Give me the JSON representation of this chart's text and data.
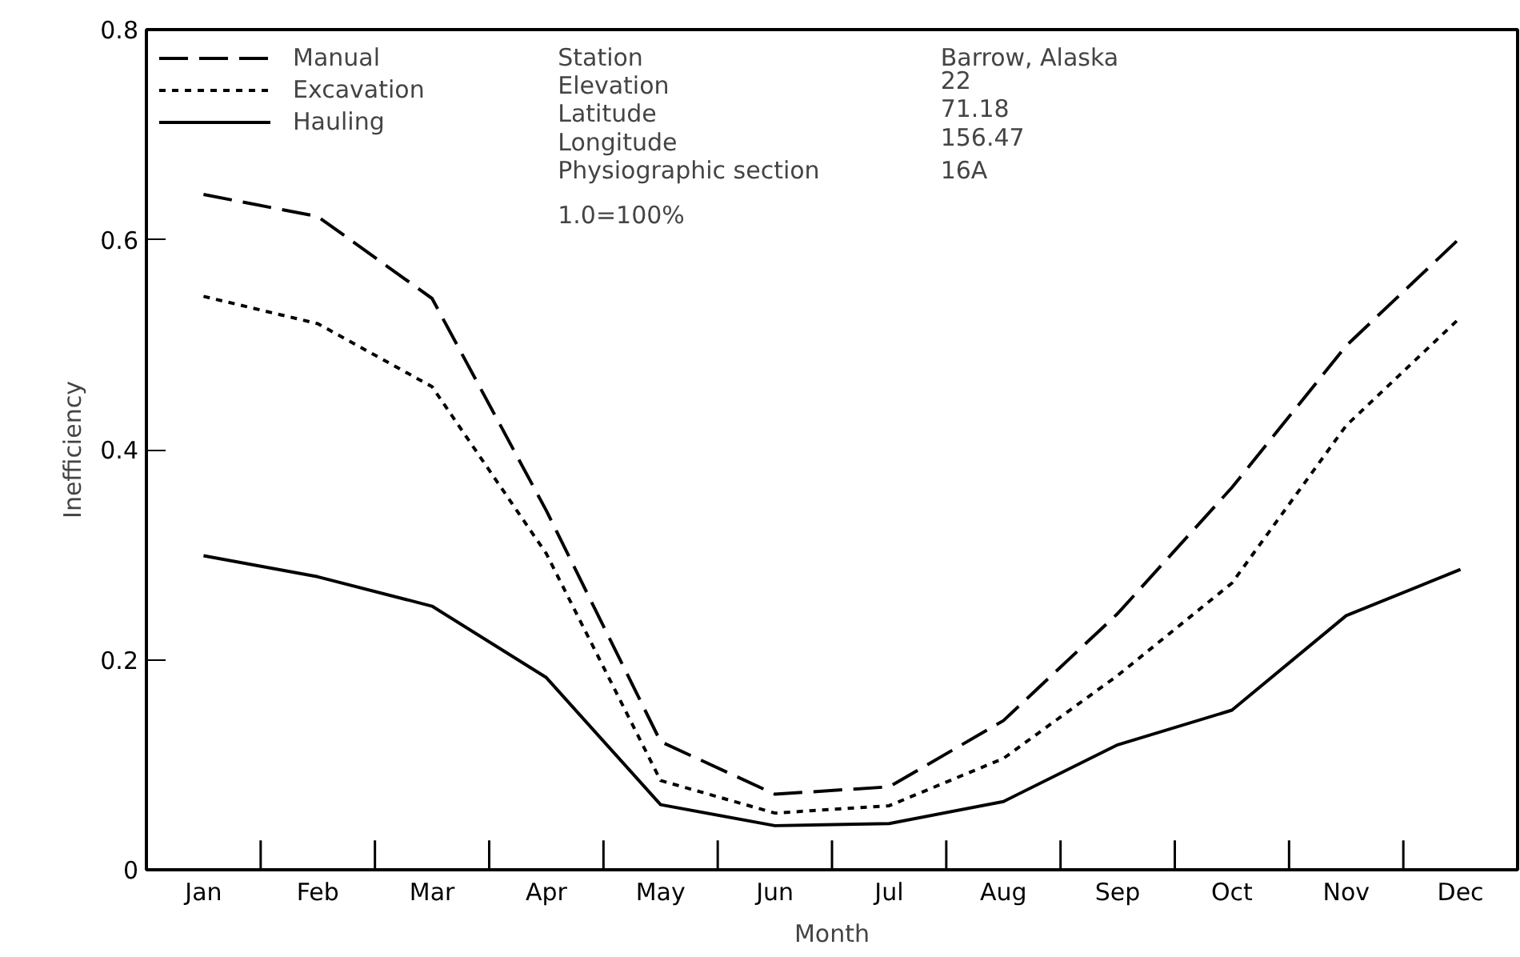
{
  "chart_data": {
    "type": "line",
    "xlabel": "Month",
    "ylabel": "Inefficiency",
    "categories": [
      "Jan",
      "Feb",
      "Mar",
      "Apr",
      "May",
      "Jun",
      "Jul",
      "Aug",
      "Sep",
      "Oct",
      "Nov",
      "Dec"
    ],
    "series": [
      {
        "name": "Manual",
        "color": "#000000",
        "line_style": "dashed",
        "values": [
          0.643,
          0.622,
          0.544,
          0.342,
          0.122,
          0.072,
          0.079,
          0.142,
          0.244,
          0.364,
          0.499,
          0.602
        ]
      },
      {
        "name": "Excavation",
        "color": "#000000",
        "line_style": "dotted",
        "values": [
          0.546,
          0.52,
          0.46,
          0.301,
          0.085,
          0.054,
          0.061,
          0.106,
          0.185,
          0.273,
          0.423,
          0.526
        ]
      },
      {
        "name": "Hauling",
        "color": "#000000",
        "line_style": "solid",
        "values": [
          0.299,
          0.279,
          0.251,
          0.183,
          0.062,
          0.042,
          0.044,
          0.065,
          0.119,
          0.152,
          0.242,
          0.286
        ]
      }
    ],
    "ylim": [
      0,
      0.8
    ],
    "yticks": [
      0,
      0.2,
      0.4,
      0.6,
      0.8
    ],
    "grid": false,
    "legend": "top left",
    "marker": "none",
    "annotations": [
      "Station",
      "Elevation",
      "Latitude",
      "Longitude",
      "Physiographic section",
      "Barrow, Alaska",
      "22",
      "71.18",
      "156.47",
      "16A",
      "1.0=100%"
    ]
  }
}
